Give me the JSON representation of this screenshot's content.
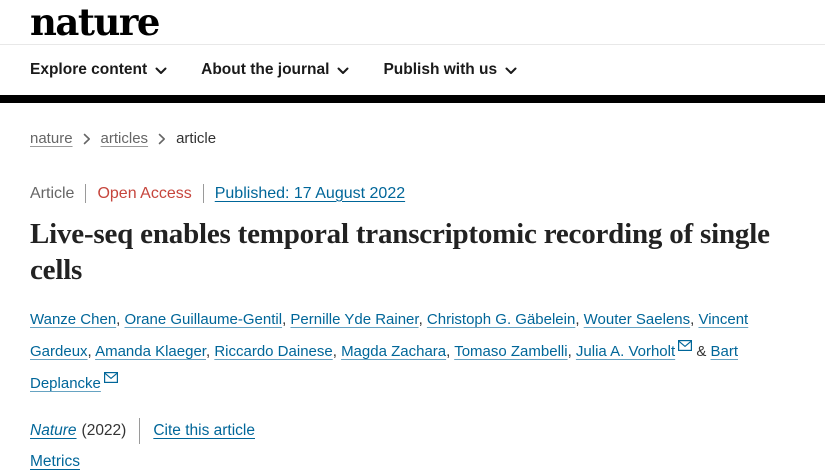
{
  "header": {
    "logo": "nature",
    "nav": [
      {
        "label": "Explore content"
      },
      {
        "label": "About the journal"
      },
      {
        "label": "Publish with us"
      }
    ]
  },
  "breadcrumb": {
    "items": [
      {
        "label": "nature"
      },
      {
        "label": "articles"
      },
      {
        "label": "article"
      }
    ]
  },
  "article": {
    "type_label": "Article",
    "access_label": "Open Access",
    "published_label": "Published: 17 August 2022",
    "title": "Live-seq enables temporal transcriptomic recording of single cells",
    "authors": [
      {
        "name": "Wanze Chen"
      },
      {
        "name": "Orane Guillaume-Gentil"
      },
      {
        "name": "Pernille Yde Rainer"
      },
      {
        "name": "Christoph G. Gäbelein"
      },
      {
        "name": "Wouter Saelens"
      },
      {
        "name": "Vincent Gardeux"
      },
      {
        "name": "Amanda Klaeger"
      },
      {
        "name": "Riccardo Dainese"
      },
      {
        "name": "Magda Zachara"
      },
      {
        "name": "Tomaso Zambelli"
      },
      {
        "name": "Julia A. Vorholt",
        "email": true
      },
      {
        "name": "Bart Deplancke",
        "email": true
      }
    ],
    "authors_separator": ", ",
    "authors_conjunction": "&",
    "journal": "Nature",
    "year_label": "(2022)",
    "cite_label": "Cite this article",
    "metrics_label": "Metrics"
  },
  "colors": {
    "link_blue": "#006699",
    "open_access_red": "#c6453c",
    "text_dark": "#222222",
    "text_gray": "#666666",
    "header_bar_black": "#000000"
  }
}
